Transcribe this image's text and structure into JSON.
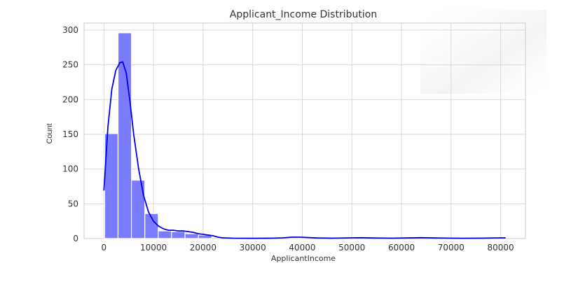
{
  "chart_data": {
    "type": "histogram",
    "title": "Applicant_Income Distribution",
    "xlabel": "ApplicantIncome",
    "ylabel": "Count",
    "xlim": [
      -4000,
      85000
    ],
    "ylim": [
      0,
      310
    ],
    "xticks": [
      0,
      10000,
      20000,
      30000,
      40000,
      50000,
      60000,
      70000,
      80000
    ],
    "yticks": [
      0,
      50,
      100,
      150,
      200,
      250,
      300
    ],
    "grid": true,
    "bin_width": 2700,
    "bins": [
      {
        "x0": 150,
        "x1": 2850,
        "count": 151
      },
      {
        "x0": 2850,
        "x1": 5550,
        "count": 296
      },
      {
        "x0": 5550,
        "x1": 8250,
        "count": 84
      },
      {
        "x0": 8250,
        "x1": 10950,
        "count": 36
      },
      {
        "x0": 10950,
        "x1": 13650,
        "count": 11
      },
      {
        "x0": 13650,
        "x1": 16350,
        "count": 10
      },
      {
        "x0": 16350,
        "x1": 19050,
        "count": 7
      },
      {
        "x0": 19050,
        "x1": 21750,
        "count": 5
      }
    ],
    "bar_color": "#7b7bff",
    "kde_color": "#0000ee",
    "kde": [
      [
        0,
        69
      ],
      [
        800,
        160
      ],
      [
        1600,
        215
      ],
      [
        2400,
        242
      ],
      [
        3200,
        253
      ],
      [
        3800,
        254
      ],
      [
        4500,
        238
      ],
      [
        5300,
        195
      ],
      [
        6000,
        150
      ],
      [
        7000,
        100
      ],
      [
        8000,
        62
      ],
      [
        9000,
        38
      ],
      [
        10000,
        25
      ],
      [
        11000,
        18
      ],
      [
        12000,
        14
      ],
      [
        13000,
        12
      ],
      [
        14000,
        12
      ],
      [
        15000,
        11
      ],
      [
        16000,
        11
      ],
      [
        17000,
        10
      ],
      [
        18000,
        9
      ],
      [
        19000,
        7
      ],
      [
        20000,
        6
      ],
      [
        21000,
        5
      ],
      [
        22000,
        4
      ],
      [
        23000,
        2
      ],
      [
        24000,
        1
      ],
      [
        26000,
        0.5
      ],
      [
        30000,
        0.3
      ],
      [
        34000,
        0.5
      ],
      [
        36000,
        1
      ],
      [
        38000,
        2
      ],
      [
        39500,
        2
      ],
      [
        41000,
        1.5
      ],
      [
        43000,
        0.8
      ],
      [
        46000,
        0.5
      ],
      [
        50000,
        1
      ],
      [
        52000,
        1.2
      ],
      [
        54000,
        0.8
      ],
      [
        58000,
        0.5
      ],
      [
        61000,
        0.8
      ],
      [
        64000,
        1.2
      ],
      [
        67000,
        0.8
      ],
      [
        72000,
        0.4
      ],
      [
        76000,
        0.5
      ],
      [
        79000,
        0.9
      ],
      [
        81000,
        1
      ]
    ]
  }
}
